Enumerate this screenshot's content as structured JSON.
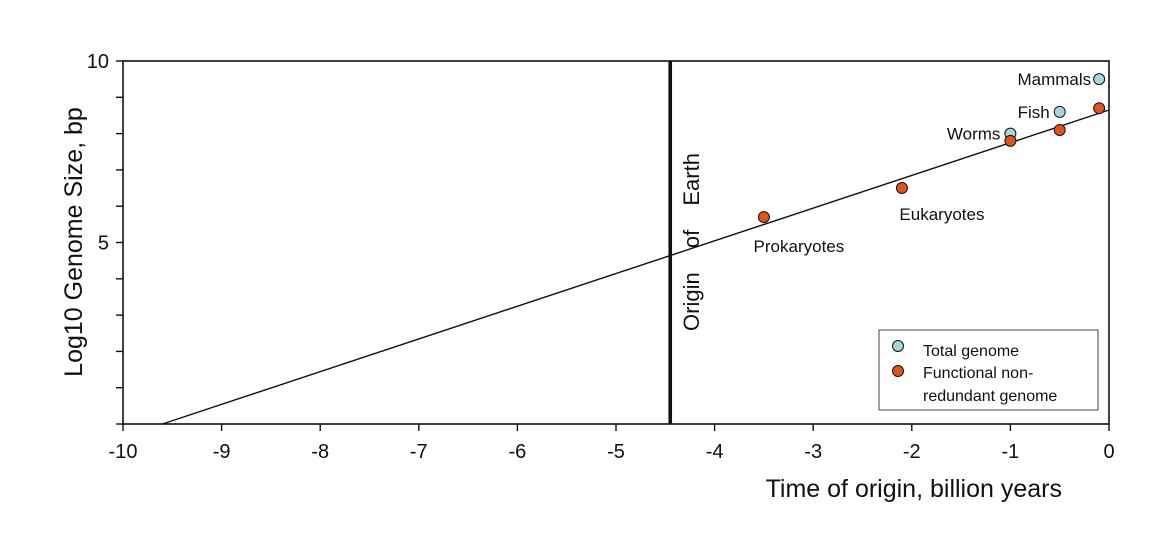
{
  "chart_data": {
    "type": "scatter",
    "xlabel": "Time of origin, billion years",
    "ylabel": "Log10 Genome Size, bp",
    "xlim": [
      -10,
      0
    ],
    "ylim": [
      0,
      10
    ],
    "x_ticks": [
      -10,
      -9,
      -8,
      -7,
      -6,
      -5,
      -4,
      -3,
      -2,
      -1,
      0
    ],
    "x_tick_labels": [
      "-10",
      "-9",
      "-8",
      "-7",
      "-6",
      "-5",
      "-4",
      "-3",
      "-2",
      "-1",
      "0"
    ],
    "y_ticks": [
      0,
      1,
      2,
      3,
      4,
      5,
      6,
      7,
      8,
      9,
      10
    ],
    "y_tick_labels": [
      "",
      "",
      "",
      "",
      "",
      "5",
      "",
      "",
      "",
      "",
      "10"
    ],
    "grid": false,
    "legend_position": "bottom-right",
    "series": [
      {
        "name": "Total genome",
        "color": "#a9d6de",
        "points": [
          {
            "x": -0.1,
            "y": 9.5
          },
          {
            "x": -0.5,
            "y": 8.6
          },
          {
            "x": -1.0,
            "y": 8.0
          }
        ]
      },
      {
        "name": "Functional non-redundant genome",
        "legend_lines": [
          "Functional non-",
          "redundant genome"
        ],
        "color": "#e0531c",
        "points": [
          {
            "x": -3.5,
            "y": 5.7
          },
          {
            "x": -2.1,
            "y": 6.5
          },
          {
            "x": -1.0,
            "y": 7.8
          },
          {
            "x": -0.5,
            "y": 8.1
          },
          {
            "x": -0.1,
            "y": 8.7
          }
        ]
      }
    ],
    "trend_line": {
      "x": [
        -9.6,
        0.0
      ],
      "y": [
        0.0,
        8.65
      ]
    },
    "vertical_line": {
      "x": -4.45,
      "label_words": [
        "Origin",
        "of",
        "Earth"
      ]
    },
    "annotations": [
      {
        "text": "Mammals",
        "x": -0.1,
        "y": 9.5
      },
      {
        "text": "Fish",
        "x": -0.5,
        "y": 8.6
      },
      {
        "text": "Worms",
        "x": -1.0,
        "y": 8.0
      },
      {
        "text": "Eukaryotes",
        "x": -2.1,
        "y": 6.5
      },
      {
        "text": "Prokaryotes",
        "x": -3.5,
        "y": 5.7
      }
    ]
  }
}
